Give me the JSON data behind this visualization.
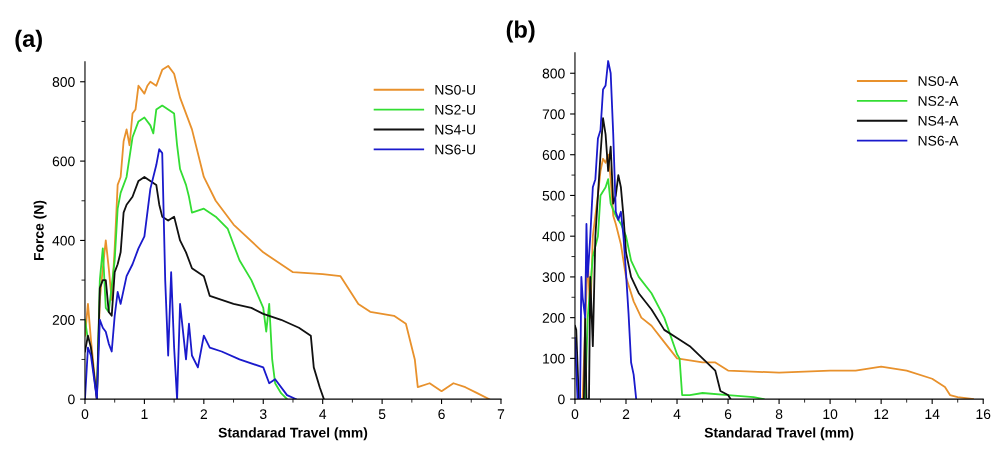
{
  "chart_data": [
    {
      "type": "line",
      "title": "(a)",
      "xlabel": "Standarad Travel (mm)",
      "ylabel": "Force (N)",
      "xlim": [
        0,
        7
      ],
      "xticks": [
        0,
        1,
        2,
        3,
        4,
        5,
        6,
        7
      ],
      "ylim": [
        0,
        850
      ],
      "yticks": [
        0,
        200,
        400,
        600,
        800
      ],
      "legend": "top right",
      "grid": false,
      "series": [
        {
          "name": "NS0-U",
          "color": "#e8912c",
          "x": [
            0,
            0.05,
            0.1,
            0.2,
            0.25,
            0.3,
            0.35,
            0.4,
            0.45,
            0.5,
            0.55,
            0.6,
            0.65,
            0.7,
            0.75,
            0.8,
            0.85,
            0.9,
            1.0,
            1.05,
            1.1,
            1.2,
            1.3,
            1.4,
            1.5,
            1.6,
            1.8,
            2.0,
            2.2,
            2.5,
            3.0,
            3.5,
            4.0,
            4.3,
            4.6,
            4.8,
            5.2,
            5.4,
            5.55,
            5.6,
            5.8,
            6.0,
            6.2,
            6.4,
            6.6,
            6.8
          ],
          "values": [
            160,
            240,
            150,
            0,
            250,
            330,
            400,
            330,
            250,
            380,
            540,
            560,
            650,
            680,
            640,
            720,
            730,
            790,
            770,
            790,
            800,
            790,
            830,
            840,
            820,
            760,
            680,
            560,
            500,
            440,
            370,
            320,
            315,
            310,
            240,
            220,
            210,
            190,
            100,
            30,
            40,
            20,
            40,
            30,
            15,
            0
          ]
        },
        {
          "name": "NS2-U",
          "color": "#33dd33",
          "x": [
            0,
            0.05,
            0.1,
            0.2,
            0.25,
            0.3,
            0.35,
            0.4,
            0.5,
            0.55,
            0.6,
            0.7,
            0.8,
            0.9,
            1.0,
            1.1,
            1.15,
            1.2,
            1.3,
            1.4,
            1.5,
            1.55,
            1.6,
            1.7,
            1.75,
            1.8,
            2.0,
            2.2,
            2.4,
            2.6,
            2.8,
            3.0,
            3.05,
            3.1,
            3.15,
            3.2,
            3.3,
            3.4
          ],
          "values": [
            200,
            150,
            null,
            0,
            300,
            380,
            230,
            220,
            350,
            480,
            520,
            560,
            660,
            700,
            710,
            690,
            670,
            730,
            740,
            730,
            720,
            640,
            580,
            540,
            510,
            470,
            480,
            460,
            430,
            350,
            300,
            230,
            170,
            240,
            100,
            40,
            15,
            0
          ]
        },
        {
          "name": "NS4-U",
          "color": "#111111",
          "x": [
            0,
            0.05,
            0.1,
            0.2,
            0.25,
            0.3,
            0.35,
            0.4,
            0.45,
            0.5,
            0.55,
            0.6,
            0.65,
            0.7,
            0.8,
            0.9,
            1.0,
            1.1,
            1.2,
            1.25,
            1.3,
            1.4,
            1.5,
            1.6,
            1.7,
            1.8,
            2.0,
            2.1,
            2.3,
            2.5,
            2.8,
            3.0,
            3.3,
            3.6,
            3.8,
            3.85,
            3.95,
            4.02
          ],
          "values": [
            120,
            160,
            130,
            0,
            280,
            300,
            300,
            220,
            210,
            320,
            340,
            370,
            470,
            490,
            510,
            550,
            560,
            550,
            540,
            490,
            460,
            450,
            460,
            400,
            370,
            330,
            310,
            260,
            250,
            240,
            230,
            215,
            200,
            180,
            160,
            80,
            30,
            0
          ]
        },
        {
          "name": "NS6-U",
          "color": "#1a1acc",
          "x": [
            0,
            0.05,
            0.1,
            0.2,
            0.25,
            0.3,
            0.35,
            0.4,
            0.45,
            0.5,
            0.55,
            0.6,
            0.7,
            0.8,
            0.9,
            1.0,
            1.1,
            1.2,
            1.25,
            1.3,
            1.35,
            1.4,
            1.45,
            1.5,
            1.55,
            1.6,
            1.7,
            1.75,
            1.8,
            1.9,
            2.0,
            2.1,
            2.3,
            2.6,
            3.0,
            3.1,
            3.2,
            3.4,
            3.55
          ],
          "values": [
            0,
            130,
            110,
            0,
            200,
            180,
            170,
            140,
            120,
            210,
            270,
            240,
            310,
            340,
            380,
            410,
            530,
            590,
            630,
            620,
            300,
            110,
            320,
            130,
            0,
            240,
            100,
            190,
            110,
            80,
            160,
            130,
            120,
            100,
            80,
            40,
            50,
            10,
            0
          ]
        }
      ]
    },
    {
      "type": "line",
      "title": "(b)",
      "xlabel": "Standarad Travel (mm)",
      "xlim": [
        0,
        16
      ],
      "xticks": [
        0,
        2,
        4,
        6,
        8,
        10,
        12,
        14,
        16
      ],
      "ylim": [
        0,
        850
      ],
      "yticks": [
        0,
        100,
        200,
        300,
        400,
        500,
        600,
        700,
        800
      ],
      "legend": "top right",
      "grid": false,
      "series": [
        {
          "name": "NS0-A",
          "color": "#e8912c",
          "x": [
            0.3,
            0.4,
            0.5,
            0.6,
            0.7,
            0.9,
            1.0,
            1.1,
            1.2,
            1.3,
            1.4,
            1.5,
            1.6,
            1.8,
            2.0,
            2.3,
            2.6,
            3.0,
            3.5,
            4.0,
            4.5,
            5.0,
            5.5,
            6.0,
            8.0,
            10.0,
            11.0,
            12.0,
            13.0,
            14.0,
            14.5,
            14.7,
            15.0,
            15.6
          ],
          "values": [
            0,
            180,
            350,
            200,
            400,
            500,
            560,
            590,
            580,
            600,
            540,
            450,
            430,
            380,
            300,
            240,
            200,
            180,
            140,
            100,
            95,
            90,
            90,
            70,
            65,
            70,
            70,
            80,
            70,
            50,
            30,
            10,
            5,
            0
          ]
        },
        {
          "name": "NS2-A",
          "color": "#33dd33",
          "x": [
            0.4,
            0.5,
            0.7,
            0.9,
            1.0,
            1.2,
            1.3,
            1.4,
            1.6,
            1.8,
            2.0,
            2.2,
            2.5,
            3.0,
            3.5,
            4.0,
            4.1,
            4.2,
            4.5,
            5.0,
            6.0,
            7.0,
            7.4
          ],
          "values": [
            0,
            200,
            350,
            400,
            500,
            520,
            540,
            480,
            450,
            430,
            400,
            340,
            300,
            260,
            200,
            110,
            100,
            10,
            10,
            15,
            10,
            5,
            0
          ]
        },
        {
          "name": "NS4-A",
          "color": "#111111",
          "x": [
            0,
            0.05,
            0.15,
            0.35,
            0.4,
            0.45,
            0.55,
            0.6,
            0.7,
            0.8,
            0.9,
            1.0,
            1.1,
            1.2,
            1.3,
            1.4,
            1.5,
            1.6,
            1.7,
            1.8,
            1.9,
            2.0,
            2.2,
            2.5,
            3.0,
            3.5,
            4.0,
            4.5,
            5.0,
            5.5,
            5.7,
            6.0,
            6.1
          ],
          "values": [
            180,
            170,
            0,
            0,
            200,
            0,
            0,
            300,
            130,
            400,
            500,
            600,
            690,
            650,
            560,
            620,
            480,
            500,
            550,
            520,
            450,
            360,
            300,
            260,
            220,
            170,
            150,
            130,
            100,
            70,
            20,
            10,
            0
          ]
        },
        {
          "name": "NS6-A",
          "color": "#1a1acc",
          "x": [
            0,
            0.1,
            0.2,
            0.25,
            0.3,
            0.4,
            0.45,
            0.5,
            0.6,
            0.7,
            0.8,
            0.9,
            1.0,
            1.1,
            1.2,
            1.3,
            1.4,
            1.5,
            1.6,
            1.7,
            1.8,
            1.9,
            2.0,
            2.1,
            2.2,
            2.3,
            2.4
          ],
          "values": [
            150,
            0,
            0,
            300,
            250,
            200,
            430,
            300,
            400,
            520,
            540,
            640,
            660,
            760,
            770,
            830,
            800,
            650,
            460,
            440,
            460,
            400,
            310,
            210,
            90,
            60,
            0
          ]
        }
      ]
    }
  ]
}
